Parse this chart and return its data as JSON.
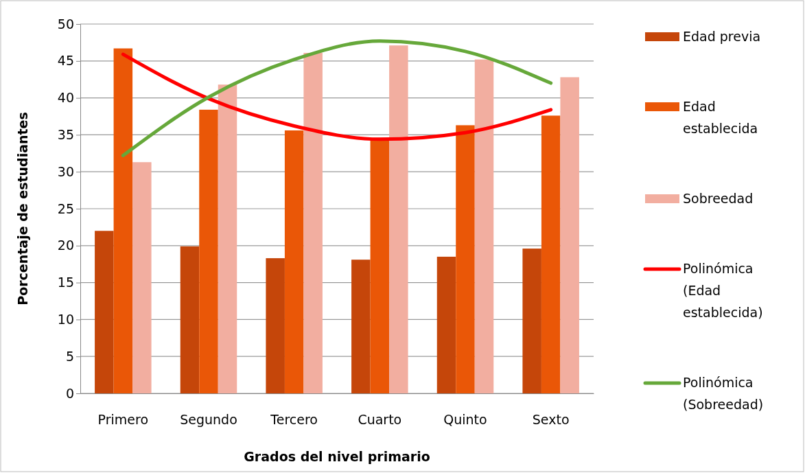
{
  "chart_data": {
    "type": "bar",
    "xlabel": "Grados del nivel primario",
    "ylabel": "Porcentaje de estudiantes",
    "categories": [
      "Primero",
      "Segundo",
      "Tercero",
      "Cuarto",
      "Quinto",
      "Sexto"
    ],
    "series": [
      {
        "name": "Edad previa",
        "color": "#c5460a",
        "values": [
          22.0,
          19.9,
          18.3,
          18.1,
          18.5,
          19.6
        ]
      },
      {
        "name": "Edad establecida",
        "color": "#ea5707",
        "values": [
          46.7,
          38.4,
          35.6,
          34.6,
          36.3,
          37.6
        ]
      },
      {
        "name": "Sobreedad",
        "color": "#f2aea0",
        "values": [
          31.3,
          41.8,
          46.1,
          47.1,
          45.2,
          42.8
        ]
      },
      {
        "name": "Polinómica (Edad establecida)",
        "type": "line",
        "color": "#ff0000",
        "values": [
          45.9,
          39.9,
          36.2,
          34.4,
          35.3,
          38.4
        ]
      },
      {
        "name": "Polinómica (Sobreedad)",
        "type": "line",
        "color": "#66a83a",
        "values": [
          32.2,
          40.1,
          45.2,
          47.7,
          46.3,
          42.0
        ]
      }
    ],
    "ylim": [
      0,
      50
    ],
    "yticks": [
      0,
      5,
      10,
      15,
      20,
      25,
      30,
      35,
      40,
      45,
      50
    ],
    "grid": "y",
    "legend": "right"
  }
}
